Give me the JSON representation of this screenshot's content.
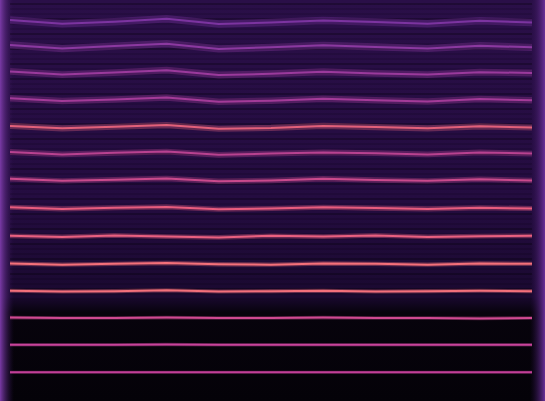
{
  "chart_data": {
    "type": "spectrogram",
    "tick_labels": false,
    "xlim": [
      0,
      100
    ],
    "ylim": [
      0,
      100
    ],
    "x": [
      0,
      10,
      20,
      30,
      40,
      50,
      60,
      70,
      80,
      90,
      100
    ],
    "series": [
      {
        "color": "#c23f98",
        "values": [
          7.2,
          7.2,
          7.2,
          7.2,
          7.2,
          7.2,
          7.2,
          7.2,
          7.2,
          7.2,
          7.2
        ]
      },
      {
        "color": "#c8439a",
        "values": [
          14.0,
          14.0,
          14.0,
          14.1,
          14.0,
          14.0,
          14.0,
          14.0,
          14.0,
          14.0,
          14.0
        ]
      },
      {
        "color": "#d04a92",
        "values": [
          20.8,
          20.7,
          20.7,
          20.8,
          20.7,
          20.7,
          20.8,
          20.7,
          20.7,
          20.6,
          20.7
        ]
      },
      {
        "color": "#f2707a",
        "values": [
          27.5,
          27.3,
          27.4,
          27.6,
          27.3,
          27.4,
          27.5,
          27.3,
          27.4,
          27.5,
          27.4
        ]
      },
      {
        "color": "#f4707a",
        "values": [
          34.3,
          34.0,
          34.2,
          34.4,
          34.1,
          34.0,
          34.3,
          34.2,
          34.0,
          34.3,
          34.2
        ]
      },
      {
        "color": "#ea6080",
        "values": [
          41.2,
          40.9,
          41.3,
          41.0,
          40.8,
          41.2,
          41.0,
          41.3,
          40.9,
          41.1,
          41.2
        ]
      },
      {
        "color": "#e85c7e",
        "values": [
          48.3,
          47.9,
          48.2,
          48.4,
          47.8,
          48.0,
          48.3,
          48.1,
          47.9,
          48.2,
          48.0
        ]
      },
      {
        "color": "#c94a8c",
        "values": [
          55.4,
          54.9,
          55.2,
          55.5,
          54.8,
          55.0,
          55.4,
          55.1,
          54.9,
          55.3,
          55.0
        ]
      },
      {
        "color": "#b84290",
        "values": [
          62.1,
          61.5,
          61.9,
          62.2,
          61.4,
          61.7,
          62.0,
          61.8,
          61.5,
          62.0,
          61.7
        ]
      },
      {
        "color": "#e2607a",
        "values": [
          68.6,
          68.0,
          68.4,
          68.8,
          67.9,
          68.1,
          68.6,
          68.3,
          68.0,
          68.5,
          68.2
        ]
      },
      {
        "color": "#a33b98",
        "values": [
          75.5,
          74.8,
          75.2,
          75.7,
          74.6,
          74.9,
          75.4,
          75.0,
          74.7,
          75.3,
          75.0
        ]
      },
      {
        "color": "#9a3a9c",
        "values": [
          82.2,
          81.4,
          81.9,
          82.5,
          81.3,
          81.6,
          82.1,
          81.7,
          81.4,
          82.0,
          81.8
        ]
      },
      {
        "color": "#8b39a0",
        "values": [
          88.8,
          87.9,
          88.5,
          89.1,
          87.8,
          88.2,
          88.7,
          88.3,
          87.9,
          88.6,
          88.2
        ]
      },
      {
        "color": "#7c34a0",
        "values": [
          95.0,
          94.1,
          94.6,
          95.3,
          94.0,
          94.4,
          94.9,
          94.5,
          94.1,
          94.8,
          94.4
        ]
      }
    ]
  }
}
